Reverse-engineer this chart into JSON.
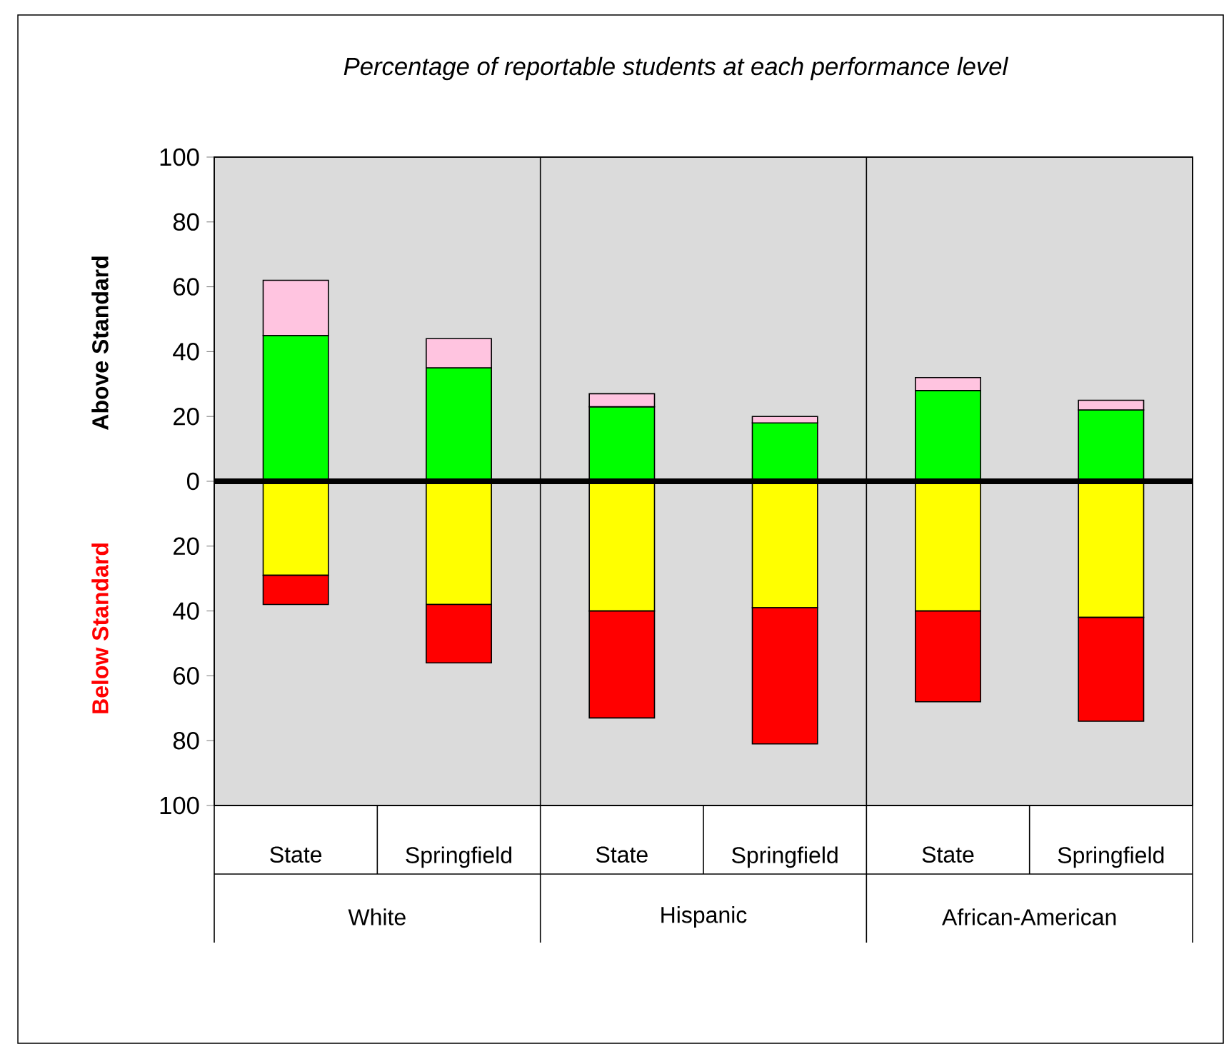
{
  "chart_data": {
    "type": "bar",
    "stacked": true,
    "title": "Percentage of reportable students at each performance level",
    "ylabel": "Above Standard",
    "categories": [
      "State",
      "Springfield",
      "State",
      "Springfield",
      "State",
      "Springfield"
    ],
    "series": [
      {
        "color": "#00ff00",
        "values": [
          45,
          35,
          23,
          18,
          28,
          22
        ]
      },
      {
        "color": "#ffc4e0",
        "values": [
          17,
          9,
          4,
          2,
          4,
          3
        ]
      },
      {
        "color": "#ffff00",
        "values": [
          -29,
          -38,
          -40,
          -39,
          -40,
          -42
        ]
      },
      {
        "color": "#ff0000",
        "values": [
          -9,
          -18,
          -33,
          -42,
          -28,
          -32
        ]
      }
    ],
    "ylim": [
      -100,
      100
    ],
    "yticks": [
      {
        "value": -100,
        "label": "100"
      },
      {
        "value": -80,
        "label": "80"
      },
      {
        "value": -60,
        "label": "60"
      },
      {
        "value": -40,
        "label": "40"
      },
      {
        "value": -20,
        "label": "20"
      },
      0,
      20,
      40,
      60,
      80,
      100
    ],
    "annotations": [
      "White",
      "Hispanic",
      "African-American",
      "Below Standard"
    ]
  }
}
